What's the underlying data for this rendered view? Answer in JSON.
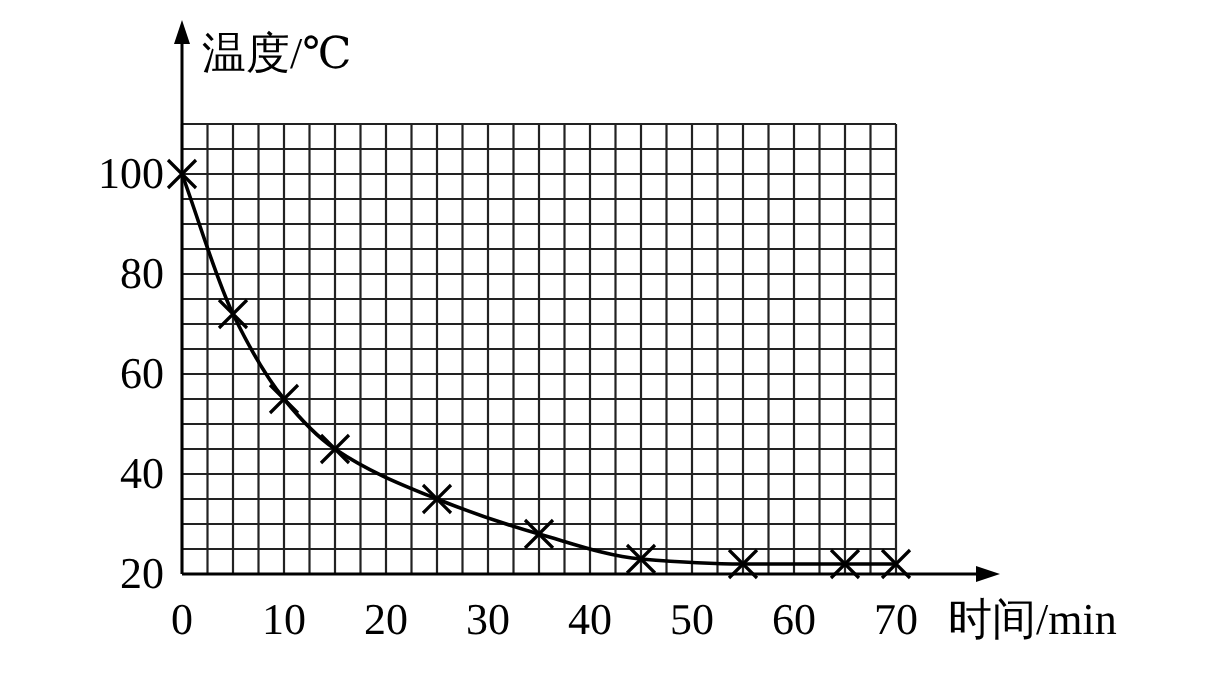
{
  "chart_data": {
    "type": "line",
    "xlabel": "时间/min",
    "ylabel": "温度/℃",
    "x": [
      0,
      5,
      10,
      15,
      25,
      35,
      45,
      55,
      65,
      70
    ],
    "series": [
      {
        "color": "#000000",
        "values": [
          100,
          72,
          55,
          45,
          35,
          28,
          23,
          22,
          22,
          22
        ]
      }
    ],
    "xlim": [
      0,
      70
    ],
    "ylim": [
      20,
      110
    ],
    "xticks": [
      0,
      10,
      20,
      30,
      40,
      50,
      60,
      70
    ],
    "yticks": [
      20,
      40,
      60,
      80,
      100
    ],
    "grid": true,
    "marker": "cross",
    "line_style": "solid"
  }
}
